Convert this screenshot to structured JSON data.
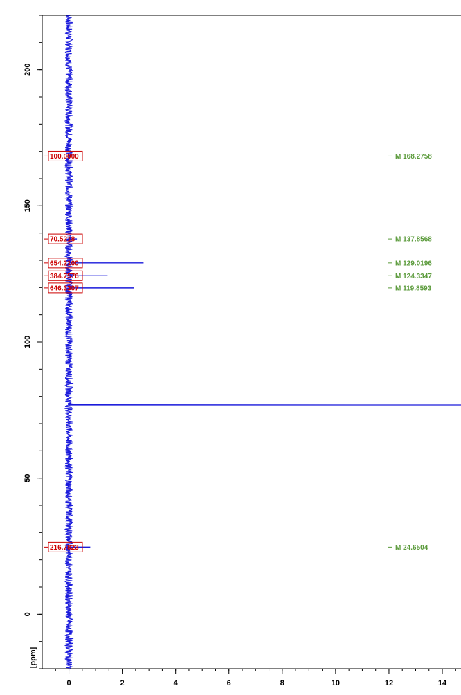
{
  "chart_data": {
    "type": "line",
    "title": "",
    "y_axis": {
      "label": "[ppm]",
      "range": [
        -20,
        220
      ],
      "ticks": [
        0,
        50,
        100,
        150,
        200
      ],
      "minor_step": 10
    },
    "x_axis": {
      "label": "",
      "range": [
        -1,
        14.7
      ],
      "ticks": [
        0,
        2,
        4,
        6,
        8,
        10,
        12,
        14
      ],
      "minor_step": 0.5
    },
    "trace_color": "#1a1adb",
    "baseline_x": 0,
    "noise_amplitude": 0.14,
    "solvent_peak": {
      "ppm": 77.2,
      "intensity": 14.7
    },
    "peaks": [
      {
        "ppm": 168.2758,
        "intensity": 0.25,
        "label": "100.0000"
      },
      {
        "ppm": 137.8568,
        "intensity": 0.3,
        "label": "70.5218"
      },
      {
        "ppm": 129.0196,
        "intensity": 2.8,
        "label": "654.2100"
      },
      {
        "ppm": 124.3347,
        "intensity": 1.45,
        "label": "384.7576"
      },
      {
        "ppm": 119.8593,
        "intensity": 2.45,
        "label": "646.3307"
      },
      {
        "ppm": 24.6504,
        "intensity": 0.8,
        "label": "216.7823"
      }
    ],
    "multiplets": [
      {
        "ppm": 168.2758,
        "label": "M 168.2758"
      },
      {
        "ppm": 137.8568,
        "label": "M 137.8568"
      },
      {
        "ppm": 129.0196,
        "label": "M 129.0196"
      },
      {
        "ppm": 124.3347,
        "label": "M 124.3347"
      },
      {
        "ppm": 119.8593,
        "label": "M 119.8593"
      },
      {
        "ppm": 24.6504,
        "label": "M 24.6504"
      }
    ],
    "peak_label_color": "#cc0000",
    "multiplet_color": "#5a9a3a",
    "grid": false,
    "legend": "none"
  }
}
